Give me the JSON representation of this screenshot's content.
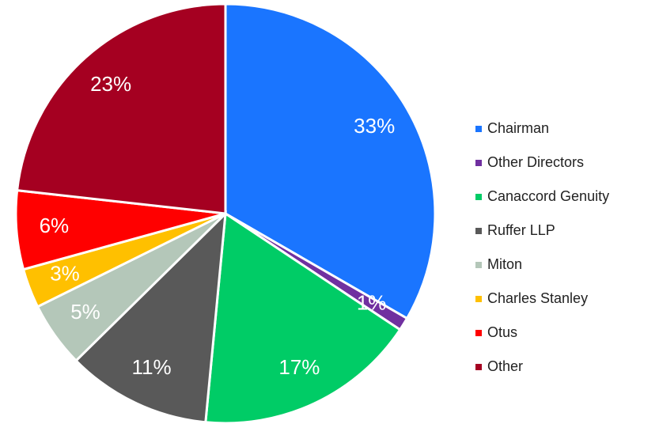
{
  "chart_data": {
    "type": "pie",
    "categories": [
      "Chairman",
      "Other Directors",
      "Canaccord Genuity",
      "Ruffer LLP",
      "Miton",
      "Charles Stanley",
      "Otus",
      "Other"
    ],
    "values": [
      33,
      1,
      17,
      11,
      5,
      3,
      6,
      23
    ],
    "value_labels": [
      "33%",
      "1%",
      "17%",
      "11%",
      "5%",
      "3%",
      "6%",
      "23%"
    ],
    "colors": [
      "#1a75ff",
      "#7030a0",
      "#00cc66",
      "#595959",
      "#b4c7b9",
      "#ffc000",
      "#ff0000",
      "#a50021"
    ],
    "legend": "right"
  }
}
